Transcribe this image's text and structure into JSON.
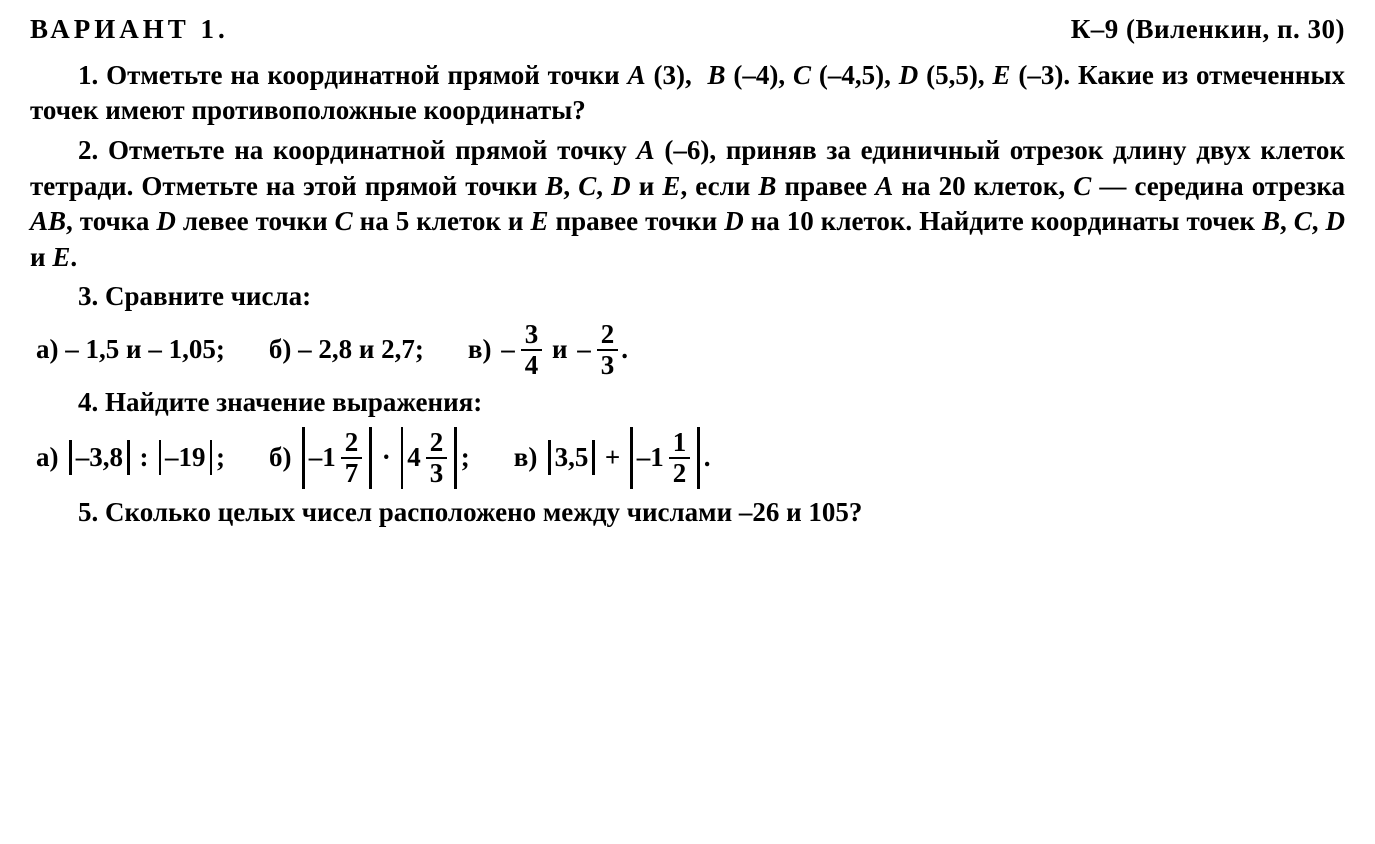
{
  "header": {
    "left": "ВАРИАНТ 1.",
    "right": "К–9 (Виленкин, п. 30)"
  },
  "q1": {
    "text": "1. Отметьте на координатной прямой точки A (3), B (–4), C (–4,5), D (5,5), E (–3). Какие из отмеченных точек имеют противоположные координаты?"
  },
  "q2": {
    "text": "2. Отметьте на координатной прямой точку A (–6), приняв за единичный отрезок длину двух клеток тетради. Отметьте на этой прямой точки B, C, D и E, если B правее A на 20 клеток, C — середина отрезка AB, точка D левее точки C на 5 клеток и E правее точки D на 10 клеток. Найдите координаты точек B, C, D и E."
  },
  "q3": {
    "lead": "3. Сравните числа:",
    "a": {
      "label": "а)",
      "left": "– 1,5",
      "conj": "и",
      "right": "– 1,05",
      "suffix": ";"
    },
    "b": {
      "label": "б)",
      "left": "– 2,8",
      "conj": "и",
      "right": "2,7",
      "suffix": ";"
    },
    "c": {
      "label": "в)",
      "left_sign": "–",
      "left_num": "3",
      "left_den": "4",
      "conj": "и",
      "right_sign": "–",
      "right_num": "2",
      "right_den": "3",
      "suffix": "."
    }
  },
  "q4": {
    "lead": "4. Найдите значение выражения:",
    "a": {
      "label": "а)",
      "abs1": "–3,8",
      "op": ":",
      "abs2": "–19",
      "suffix": ";"
    },
    "b": {
      "label": "б)",
      "abs1_sign": "– ",
      "abs1_whole": "1",
      "abs1_num": "2",
      "abs1_den": "7",
      "op": "·",
      "abs2_whole": "4",
      "abs2_num": "2",
      "abs2_den": "3",
      "suffix": ";"
    },
    "c": {
      "label": "в)",
      "abs1": "3,5",
      "op": "+",
      "abs2_sign": "– ",
      "abs2_whole": "1",
      "abs2_num": "1",
      "abs2_den": "2",
      "suffix": "."
    }
  },
  "q5": {
    "text": "5. Сколько целых чисел расположено между числами –26 и 105?"
  }
}
